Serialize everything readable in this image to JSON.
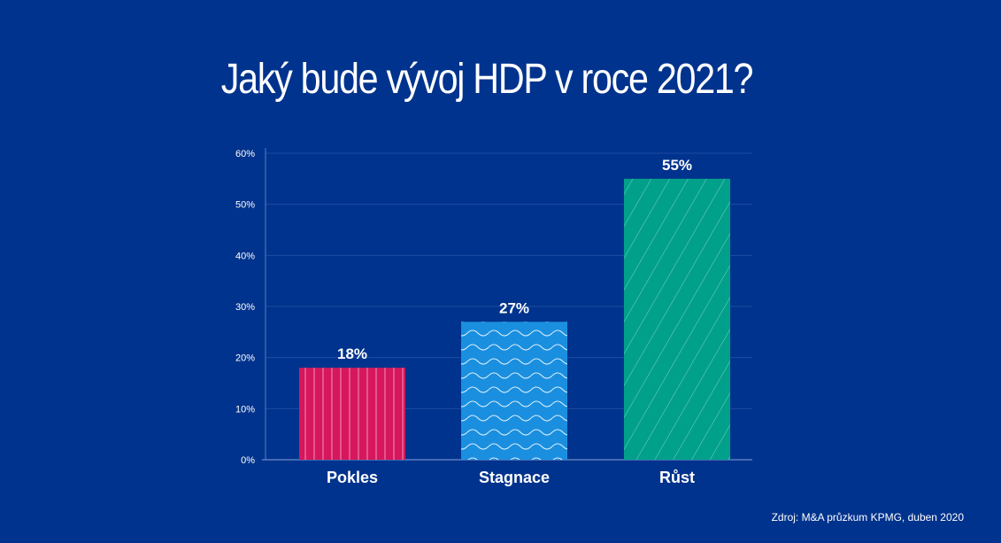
{
  "colors": {
    "background": "#00338d",
    "gridline": "#1d4ba3",
    "axis": "#5a7cc2",
    "text": "#ffffff"
  },
  "chart_data": {
    "type": "bar",
    "title": "Jaký bude vývoj HDP v roce 2021?",
    "categories": [
      "Pokles",
      "Stagnace",
      "Růst"
    ],
    "values": [
      18,
      27,
      55
    ],
    "value_labels": [
      "18%",
      "27%",
      "55%"
    ],
    "bar_colors": [
      "#d6175d",
      "#1a8fe0",
      "#00a08a"
    ],
    "bar_patterns": [
      "vertical-lines",
      "waves",
      "diagonal-lines"
    ],
    "yticks": [
      0,
      10,
      20,
      30,
      40,
      50,
      60
    ],
    "ytick_labels": [
      "0%",
      "10%",
      "20%",
      "30%",
      "40%",
      "50%",
      "60%"
    ],
    "ylim": [
      0,
      60
    ],
    "grid": true,
    "xlabel": "",
    "ylabel": ""
  },
  "source": "Zdroj: M&A průzkum KPMG, duben 2020"
}
